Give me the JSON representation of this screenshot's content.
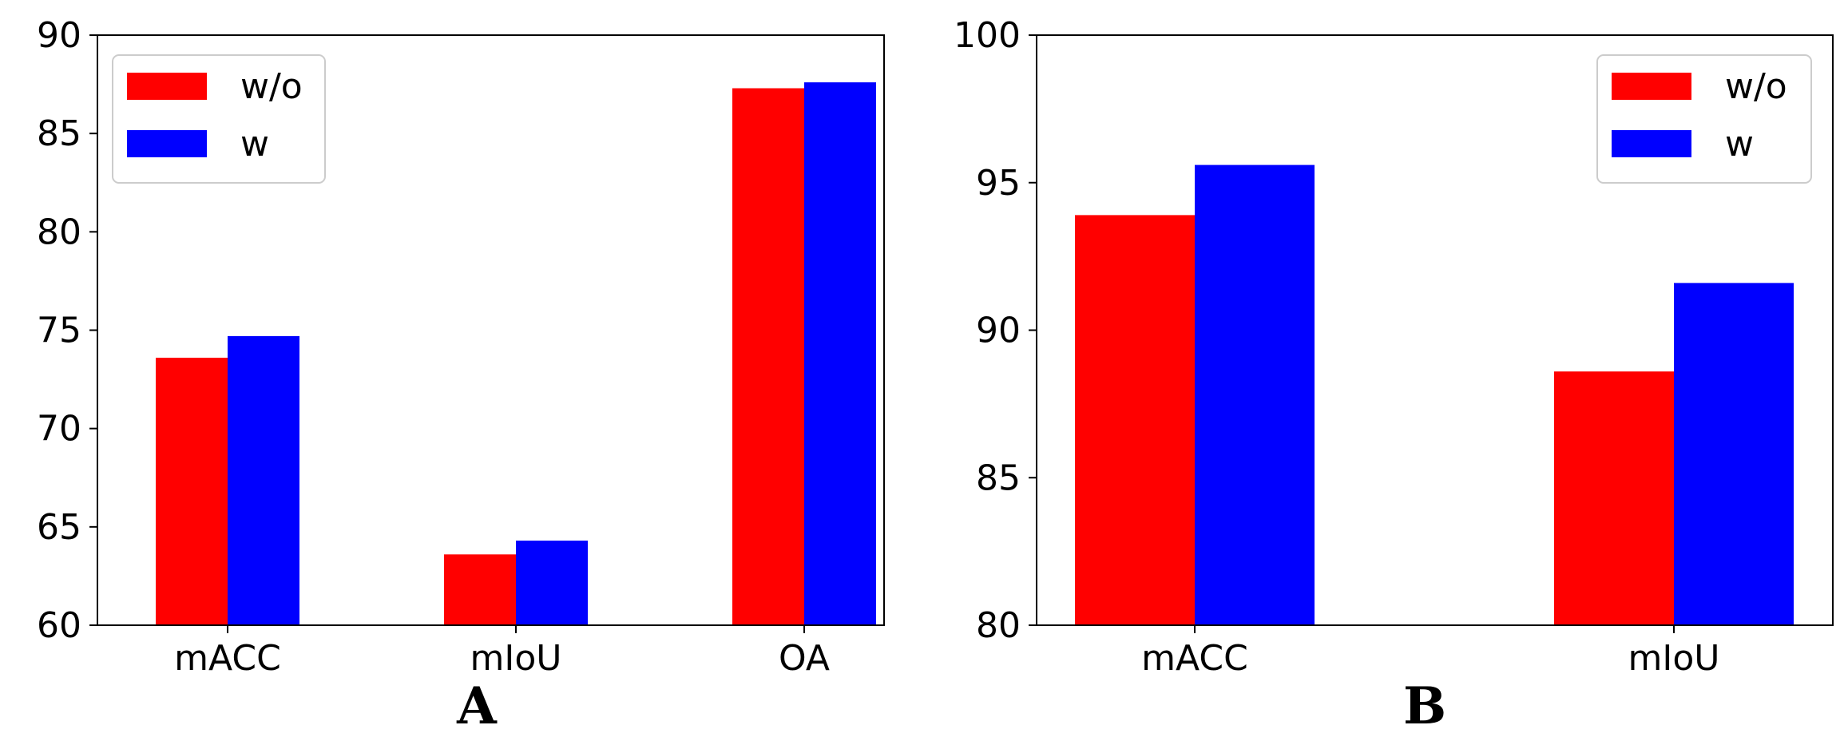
{
  "colors": {
    "w/o": "#ff0000",
    "w": "#0000ff",
    "axis": "#000000",
    "legend_border": "#cccccc"
  },
  "chart_data": [
    {
      "type": "bar",
      "panel_label": "A",
      "categories": [
        "mACC",
        "mIoU",
        "OA"
      ],
      "series": [
        {
          "name": "w/o",
          "values": [
            73.6,
            63.6,
            87.3
          ]
        },
        {
          "name": "w",
          "values": [
            74.7,
            64.3,
            87.6
          ]
        }
      ],
      "title": "",
      "xlabel": "",
      "ylabel": "",
      "ylim": [
        60,
        90
      ],
      "yticks": [
        60,
        65,
        70,
        75,
        80,
        85,
        90
      ],
      "grid": false,
      "legend_position": "top-left"
    },
    {
      "type": "bar",
      "panel_label": "B",
      "categories": [
        "mACC",
        "mIoU"
      ],
      "series": [
        {
          "name": "w/o",
          "values": [
            93.9,
            88.6
          ]
        },
        {
          "name": "w",
          "values": [
            95.6,
            91.6
          ]
        }
      ],
      "title": "",
      "xlabel": "",
      "ylabel": "",
      "ylim": [
        80,
        100
      ],
      "yticks": [
        80,
        85,
        90,
        95,
        100
      ],
      "grid": false,
      "legend_position": "top-right"
    }
  ]
}
